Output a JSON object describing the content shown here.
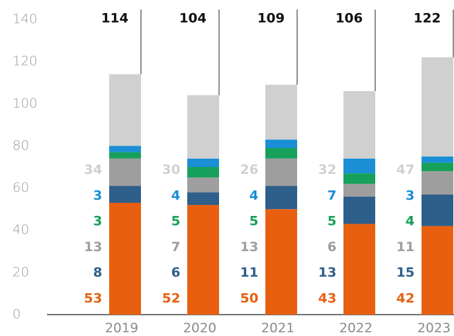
{
  "chart_data": {
    "type": "stacked_bar",
    "categories": [
      "2019",
      "2020",
      "2021",
      "2022",
      "2023"
    ],
    "series": [
      {
        "color": "#e8600f",
        "values": [
          53,
          52,
          50,
          43,
          42
        ]
      },
      {
        "color": "#2e5f8a",
        "values": [
          8,
          6,
          11,
          13,
          15
        ]
      },
      {
        "color": "#9e9e9e",
        "values": [
          13,
          7,
          13,
          6,
          11
        ]
      },
      {
        "color": "#17a05a",
        "values": [
          3,
          5,
          5,
          5,
          4
        ]
      },
      {
        "color": "#1a8fd6",
        "values": [
          3,
          4,
          4,
          7,
          3
        ]
      },
      {
        "color": "#d0d0d0",
        "values": [
          34,
          30,
          26,
          32,
          47
        ]
      }
    ],
    "totals": [
      114,
      104,
      109,
      106,
      122
    ],
    "ylim": [
      0,
      140
    ],
    "yticks": [
      0,
      20,
      40,
      60,
      80,
      100,
      120,
      140
    ],
    "grid": false
  }
}
